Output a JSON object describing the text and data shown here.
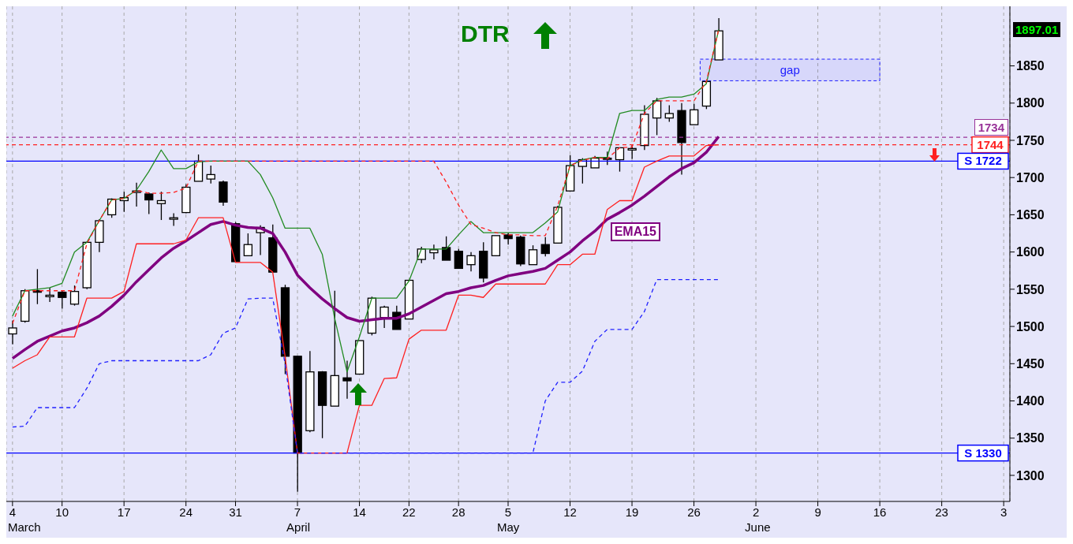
{
  "chart_data": {
    "type": "candlestick",
    "title": "DTR",
    "categories": [
      "4",
      null,
      null,
      null,
      "10",
      null,
      null,
      null,
      null,
      "17",
      null,
      null,
      null,
      null,
      "24",
      null,
      null,
      null,
      "31",
      null,
      null,
      null,
      null,
      "7",
      null,
      null,
      null,
      null,
      "14",
      null,
      null,
      null,
      "22",
      null,
      null,
      null,
      "28",
      null,
      null,
      null,
      "5",
      null,
      null,
      null,
      null,
      "12",
      null,
      null,
      null,
      null,
      "19",
      null,
      null,
      null,
      null,
      "26",
      null,
      null,
      null,
      null,
      "2",
      null,
      null,
      null,
      null,
      "9",
      null,
      null,
      null,
      null,
      "16",
      null,
      null,
      null,
      null,
      "23",
      null,
      null,
      null,
      null,
      "3"
    ],
    "ohlc": [
      [
        1490,
        1508,
        1476,
        1498
      ],
      [
        1507,
        1550,
        1505,
        1548
      ],
      [
        1548,
        1577,
        1530,
        1546
      ],
      [
        1540,
        1552,
        1533,
        1542
      ],
      [
        1546,
        1548,
        1524,
        1539
      ],
      [
        1530,
        1555,
        1528,
        1547
      ],
      [
        1552,
        1614,
        1550,
        1613
      ],
      [
        1613,
        1644,
        1600,
        1642
      ],
      [
        1650,
        1672,
        1646,
        1671
      ],
      [
        1669,
        1681,
        1654,
        1673
      ],
      [
        1680,
        1693,
        1661,
        1682
      ],
      [
        1678,
        1680,
        1651,
        1670
      ],
      [
        1665,
        1681,
        1643,
        1669
      ],
      [
        1644,
        1652,
        1635,
        1646
      ],
      [
        1653,
        1691,
        1652,
        1687
      ],
      [
        1695,
        1731,
        1695,
        1722
      ],
      [
        1698,
        1716,
        1692,
        1704
      ],
      [
        1694,
        1696,
        1662,
        1667
      ],
      [
        1638,
        1640,
        1587,
        1587
      ],
      [
        1595,
        1625,
        1595,
        1610
      ],
      [
        1626,
        1636,
        1596,
        1633
      ],
      [
        1619,
        1637,
        1573,
        1573
      ],
      [
        1552,
        1556,
        1436,
        1460
      ],
      [
        1460,
        1460,
        1278,
        1330
      ],
      [
        1360,
        1467,
        1358,
        1439
      ],
      [
        1439,
        1440,
        1350,
        1394
      ],
      [
        1393,
        1548,
        1393,
        1434
      ],
      [
        1431,
        1454,
        1403,
        1427
      ],
      [
        1436,
        1481,
        1436,
        1481
      ],
      [
        1491,
        1540,
        1488,
        1538
      ],
      [
        1512,
        1528,
        1498,
        1526
      ],
      [
        1519,
        1528,
        1496,
        1496
      ],
      [
        1510,
        1562,
        1510,
        1562
      ],
      [
        1590,
        1607,
        1585,
        1604
      ],
      [
        1599,
        1610,
        1590,
        1603
      ],
      [
        1606,
        1621,
        1589,
        1589
      ],
      [
        1601,
        1604,
        1578,
        1578
      ],
      [
        1583,
        1600,
        1574,
        1595
      ],
      [
        1601,
        1613,
        1559,
        1565
      ],
      [
        1595,
        1622,
        1595,
        1622
      ],
      [
        1623,
        1626,
        1610,
        1618
      ],
      [
        1620,
        1622,
        1581,
        1584
      ],
      [
        1583,
        1609,
        1583,
        1603
      ],
      [
        1610,
        1620,
        1594,
        1598
      ],
      [
        1612,
        1662,
        1612,
        1660
      ],
      [
        1682,
        1730,
        1682,
        1716
      ],
      [
        1715,
        1726,
        1692,
        1724
      ],
      [
        1713,
        1729,
        1713,
        1726
      ],
      [
        1725,
        1735,
        1717,
        1726
      ],
      [
        1724,
        1740,
        1708,
        1740
      ],
      [
        1737,
        1744,
        1725,
        1739
      ],
      [
        1743,
        1797,
        1737,
        1785
      ],
      [
        1780,
        1807,
        1757,
        1803
      ],
      [
        1780,
        1797,
        1775,
        1786
      ],
      [
        1790,
        1800,
        1704,
        1747
      ],
      [
        1771,
        1799,
        1771,
        1791
      ],
      [
        1796,
        1829,
        1792,
        1829
      ],
      [
        1858,
        1914,
        1858,
        1897.01
      ],
      null,
      null,
      null,
      null,
      null,
      null,
      null,
      null,
      null,
      null,
      null,
      null,
      null,
      null,
      null,
      null,
      null,
      null,
      null,
      null,
      null,
      null,
      null
    ],
    "series": [
      {
        "name": "EMA15",
        "type": "line",
        "color": "#800080",
        "values": [
          1457,
          1469,
          1480,
          1487,
          1494,
          1498,
          1505,
          1514,
          1527,
          1542,
          1560,
          1576,
          1592,
          1605,
          1615,
          1626,
          1637,
          1641,
          1636,
          1633,
          1632,
          1625,
          1600,
          1569,
          1552,
          1537,
          1524,
          1512,
          1507,
          1509,
          1511,
          1511,
          1517,
          1526,
          1535,
          1544,
          1547,
          1552,
          1555,
          1562,
          1568,
          1571,
          1574,
          1578,
          1589,
          1600,
          1615,
          1628,
          1644,
          1653,
          1663,
          1675,
          1688,
          1701,
          1712,
          1720,
          1734,
          1755,
          null,
          null,
          null,
          null,
          null,
          null,
          null,
          null,
          null,
          null,
          null,
          null,
          null,
          null,
          null,
          null,
          null,
          null,
          null,
          null,
          null,
          null,
          null
        ]
      },
      {
        "type": "line",
        "color": "#228b22",
        "line_style": "solid",
        "values": [
          1514,
          1548,
          1550,
          1552,
          1558,
          1600,
          1613,
          1642,
          1670,
          1672,
          1683,
          1708,
          1737,
          1712,
          1712,
          1721,
          1722,
          1722,
          1722,
          1722,
          1704,
          1673,
          1632,
          1632,
          1632,
          1597,
          1511,
          1439,
          1486,
          1538,
          1538,
          1538,
          1561,
          1604,
          1604,
          1604,
          1623,
          1641,
          1626,
          1626,
          1626,
          1626,
          1626,
          1639,
          1654,
          1716,
          1724,
          1727,
          1727,
          1786,
          1790,
          1790,
          1805,
          1808,
          1808,
          1812,
          1826,
          1899,
          null,
          null,
          null,
          null,
          null,
          null,
          null,
          null,
          null,
          null,
          null,
          null,
          null,
          null,
          null,
          null,
          null,
          null,
          null,
          null,
          null,
          null,
          null
        ]
      },
      {
        "type": "line",
        "color": "#ff2020",
        "line_style": "solid",
        "values": [
          1444,
          1454,
          1462,
          1486,
          1486,
          1486,
          1538,
          1538,
          1538,
          1547,
          1611,
          1611,
          1611,
          1611,
          1616,
          1646,
          1646,
          1646,
          1586,
          1586,
          1586,
          1573,
          1460,
          1330,
          1330,
          1330,
          1330,
          1330,
          1394,
          1394,
          1430,
          1431,
          1483,
          1495,
          1495,
          1495,
          1542,
          1542,
          1539,
          1557,
          1557,
          1557,
          1557,
          1557,
          1583,
          1583,
          1597,
          1597,
          1657,
          1669,
          1669,
          1714,
          1722,
          1729,
          1729,
          1729,
          1743,
          1744,
          null,
          null,
          null,
          null,
          null,
          null,
          null,
          null,
          null,
          null,
          null,
          null,
          null,
          null,
          null,
          null,
          null,
          null,
          null,
          null,
          null,
          null,
          null
        ]
      },
      {
        "type": "line",
        "color": "#ff2020",
        "line_style": "dashed",
        "values": [
          1504,
          1548,
          1548,
          1548,
          1548,
          1548,
          1611,
          1642,
          1670,
          1672,
          1683,
          1679,
          1679,
          1680,
          1686,
          1722,
          1722,
          1722,
          1722,
          1722,
          1722,
          1722,
          1722,
          1722,
          1722,
          1722,
          1722,
          1722,
          1722,
          1722,
          1722,
          1722,
          1722,
          1722,
          1722,
          1694,
          1663,
          1637,
          1632,
          1626,
          1623,
          1623,
          1622,
          1622,
          1662,
          1716,
          1723,
          1727,
          1725,
          1740,
          1741,
          1786,
          1803,
          1803,
          1803,
          1803,
          1829,
          1899,
          null,
          null,
          null,
          null,
          null,
          null,
          null,
          null,
          null,
          null,
          null,
          null,
          null,
          null,
          null,
          null,
          null,
          null,
          null,
          null,
          null,
          null,
          null
        ]
      },
      {
        "type": "line",
        "color": "#2020ff",
        "line_style": "dashed",
        "values": [
          1365,
          1366,
          1391,
          1391,
          1391,
          1391,
          1417,
          1450,
          1454,
          1454,
          1454,
          1454,
          1454,
          1454,
          1454,
          1454,
          1462,
          1491,
          1498,
          1537,
          1538,
          1538,
          1450,
          1330,
          1330,
          1330,
          1330,
          1330,
          1330,
          1330,
          1330,
          1330,
          1330,
          1330,
          1330,
          1330,
          1330,
          1330,
          1330,
          1330,
          1330,
          1330,
          1330,
          1400,
          1425,
          1425,
          1440,
          1480,
          1496,
          1496,
          1496,
          1520,
          1563,
          1563,
          1563,
          1563,
          1563,
          1563,
          null,
          null,
          null,
          null,
          null,
          null,
          null,
          null,
          null,
          null,
          null,
          null,
          null,
          null,
          null,
          null,
          null,
          null,
          null,
          null,
          null,
          null,
          null
        ]
      }
    ],
    "ylim": [
      1265,
      1930
    ],
    "yticks": [
      1300,
      1350,
      1400,
      1450,
      1500,
      1550,
      1600,
      1650,
      1700,
      1750,
      1800,
      1850
    ],
    "grid": "x",
    "ref_lines": [
      {
        "axis": "y",
        "value": 1754,
        "color": "#993399",
        "line_style": "dashed"
      },
      {
        "axis": "y",
        "value": 1744,
        "label": "1744",
        "color": "#ff2020",
        "line_style": "dashed"
      },
      {
        "axis": "y",
        "value": 1722,
        "label": "S 1722",
        "color": "#0000ff",
        "line_style": "solid"
      },
      {
        "axis": "y",
        "value": 1330,
        "label": "S 1330",
        "color": "#0000ff",
        "line_style": "solid"
      }
    ],
    "bands": [
      {
        "axis": "y",
        "from": 1830,
        "to": 1859,
        "label": "gap",
        "color": "#2020ff"
      }
    ],
    "annotations": [
      {
        "text": "1734",
        "y": 1754
      },
      "1897.01",
      "March",
      "April",
      "May",
      "June"
    ]
  }
}
